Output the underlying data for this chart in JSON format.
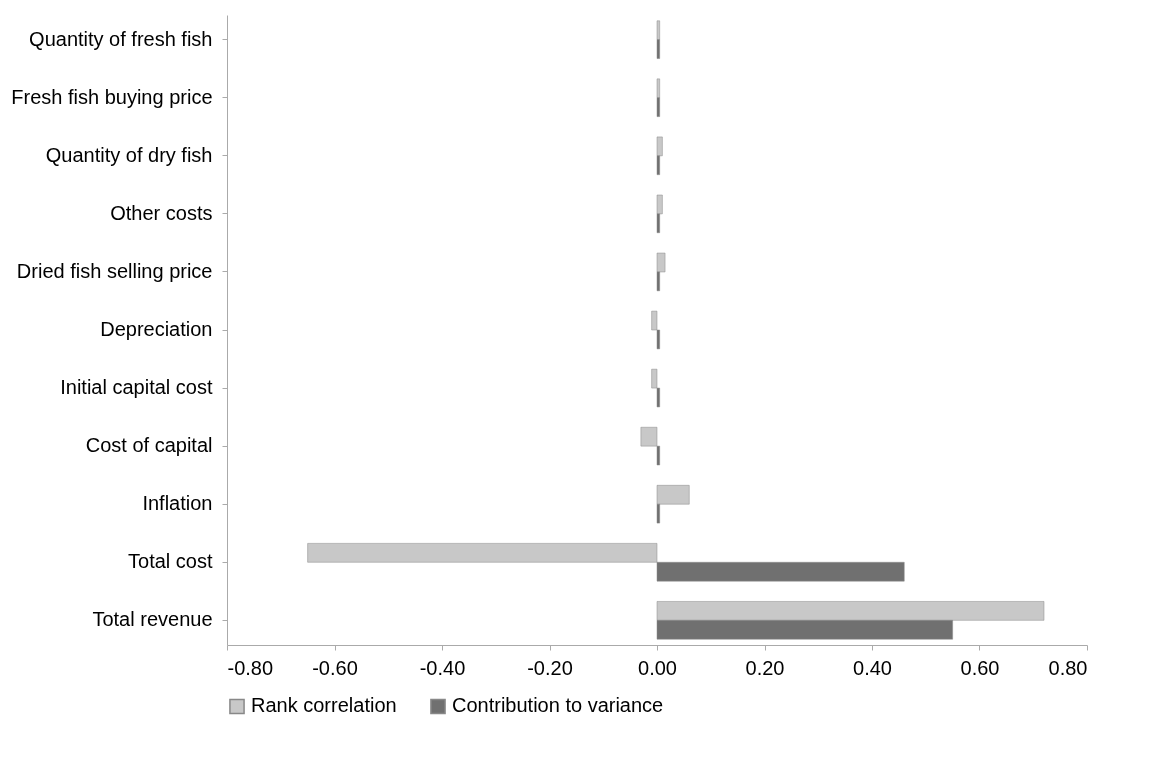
{
  "chart_data": {
    "type": "bar",
    "orientation": "horizontal",
    "categories": [
      "Quantity of fresh fish",
      "Fresh fish buying price",
      "Quantity of dry fish",
      "Other costs",
      "Dried fish selling price",
      "Depreciation",
      "Initial capital cost",
      "Cost of capital",
      "Inflation",
      "Total cost",
      "Total revenue"
    ],
    "series": [
      {
        "name": "Rank correlation",
        "color": "#c8c8c8",
        "values": [
          0.005,
          0.005,
          0.01,
          0.01,
          0.015,
          -0.01,
          -0.01,
          -0.03,
          0.06,
          -0.65,
          0.72
        ]
      },
      {
        "name": "Contribution to variance",
        "color": "#707070",
        "values": [
          0.005,
          0.005,
          0.005,
          0.005,
          0.005,
          0.005,
          0.005,
          0.005,
          0.005,
          0.46,
          0.55
        ]
      }
    ],
    "xlim": [
      -0.8,
      0.8
    ],
    "xticks": [
      {
        "value": -0.8,
        "label": "-0.80"
      },
      {
        "value": -0.6,
        "label": "-0.60"
      },
      {
        "value": -0.4,
        "label": "-0.40"
      },
      {
        "value": -0.2,
        "label": "-0.20"
      },
      {
        "value": 0,
        "label": "0.00"
      },
      {
        "value": 0.2,
        "label": "0.20"
      },
      {
        "value": 0.4,
        "label": "0.40"
      },
      {
        "value": 0.6,
        "label": "0.60"
      },
      {
        "value": 0.8,
        "label": "0.80"
      }
    ],
    "grid": false,
    "legend": "bottom"
  }
}
